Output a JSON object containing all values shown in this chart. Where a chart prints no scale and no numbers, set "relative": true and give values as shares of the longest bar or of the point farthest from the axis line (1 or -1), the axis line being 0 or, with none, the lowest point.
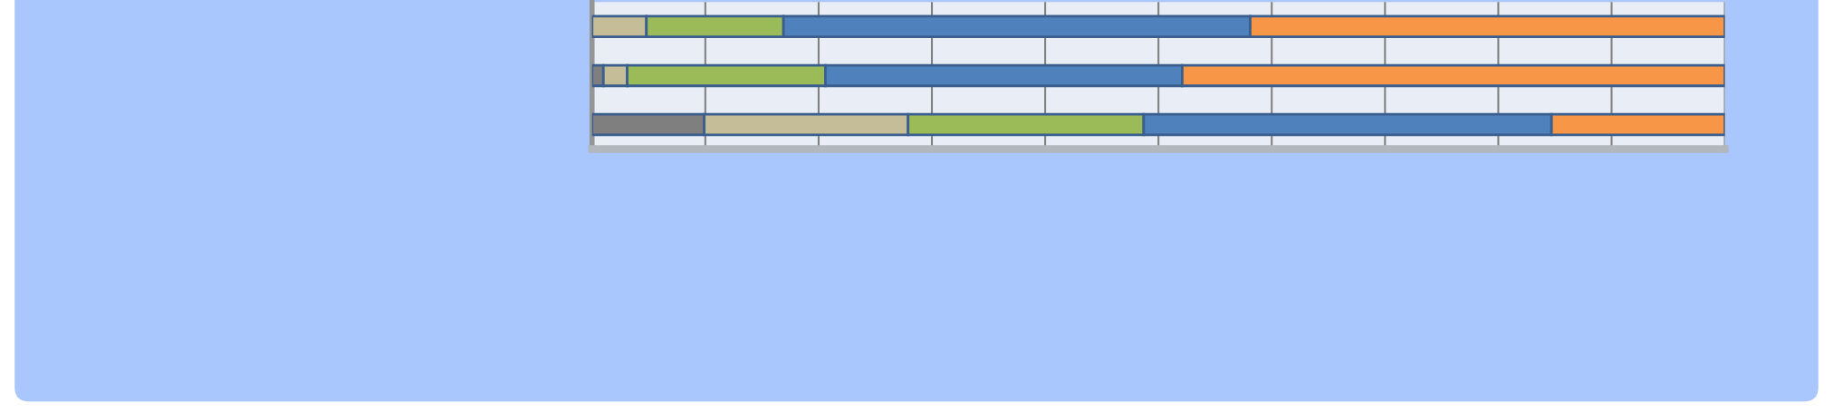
{
  "chart_data": {
    "type": "bar",
    "orientation": "horizontal",
    "stacked": true,
    "relative": true,
    "grid": "x",
    "categories": [
      null,
      null,
      null
    ],
    "series": [
      {
        "color": "#7f7f7f",
        "values": [
          0,
          0.01,
          0.099
        ]
      },
      {
        "color": "#c4bd97",
        "values": [
          0.048,
          0.021,
          0.18
        ]
      },
      {
        "color": "#9bbb59",
        "values": [
          0.121,
          0.175,
          0.208
        ]
      },
      {
        "color": "#4f81bd",
        "values": [
          0.412,
          0.315,
          0.36
        ]
      },
      {
        "color": "#f79646",
        "values": [
          0.419,
          0.479,
          0.153
        ]
      }
    ]
  }
}
